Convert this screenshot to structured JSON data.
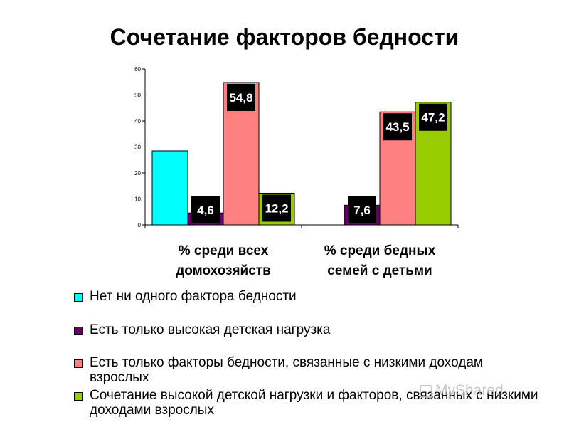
{
  "watermark": "MyShared",
  "chart_data": {
    "type": "bar",
    "title": "Сочетание факторов бедности",
    "categories": [
      "% среди всех домохозяйств",
      "% среди бедных семей с детьми"
    ],
    "category_lines": [
      [
        "% среди всех",
        "домохозяйств"
      ],
      [
        "% среди бедных",
        "семей с детьми"
      ]
    ],
    "ylim": [
      0,
      60
    ],
    "yticks": [
      0,
      10,
      20,
      30,
      40,
      50,
      60
    ],
    "grid": false,
    "legend_position": "bottom",
    "series": [
      {
        "name": "Нет ни одного фактора бедности",
        "color": "#00FFFF",
        "values": [
          28.5,
          null
        ],
        "labels": [
          null,
          null
        ]
      },
      {
        "name": "Есть только высокая детская нагрузка",
        "color": "#660066",
        "values": [
          4.6,
          7.6
        ],
        "labels": [
          "4,6",
          "7,6"
        ]
      },
      {
        "name": "Есть только факторы бедности, связанные с низкими доходам взрослых",
        "color": "#FF8080",
        "values": [
          54.8,
          43.5
        ],
        "labels": [
          "54,8",
          "43,5"
        ]
      },
      {
        "name": "Сочетание высокой детской нагрузки и факторов, связанных с низкими доходами взрослых",
        "color": "#99CC00",
        "values": [
          12.2,
          47.2
        ],
        "labels": [
          "12,2",
          "47,2"
        ]
      }
    ]
  }
}
